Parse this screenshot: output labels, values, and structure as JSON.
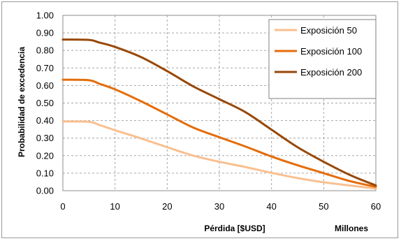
{
  "chart_data": {
    "type": "line",
    "title": "",
    "xlabel": "Pérdida [$USD]",
    "xunit_label": "Millones",
    "ylabel": "Probabilidad de excedencia",
    "xlim": [
      0,
      60
    ],
    "ylim": [
      0,
      1
    ],
    "xticks": [
      "0",
      "10",
      "20",
      "30",
      "40",
      "50",
      "60"
    ],
    "yticks": [
      "0.00",
      "0.10",
      "0.20",
      "0.30",
      "0.40",
      "0.50",
      "0.60",
      "0.70",
      "0.80",
      "0.90",
      "1.00"
    ],
    "grid": true,
    "legend_position": "top-right",
    "series": [
      {
        "name": "Exposición 50",
        "color": "#f9bf8f",
        "points": [
          [
            0,
            0.395
          ],
          [
            5,
            0.393
          ],
          [
            7,
            0.375
          ],
          [
            10,
            0.345
          ],
          [
            15,
            0.298
          ],
          [
            20,
            0.248
          ],
          [
            25,
            0.2
          ],
          [
            30,
            0.165
          ],
          [
            35,
            0.135
          ],
          [
            40,
            0.102
          ],
          [
            45,
            0.072
          ],
          [
            50,
            0.048
          ],
          [
            55,
            0.03
          ],
          [
            60,
            0.012
          ]
        ]
      },
      {
        "name": "Exposición 100",
        "color": "#e46c0a",
        "points": [
          [
            0,
            0.633
          ],
          [
            5,
            0.63
          ],
          [
            7,
            0.61
          ],
          [
            10,
            0.578
          ],
          [
            15,
            0.51
          ],
          [
            20,
            0.435
          ],
          [
            25,
            0.36
          ],
          [
            30,
            0.305
          ],
          [
            35,
            0.252
          ],
          [
            40,
            0.195
          ],
          [
            45,
            0.145
          ],
          [
            50,
            0.1
          ],
          [
            55,
            0.055
          ],
          [
            60,
            0.022
          ]
        ]
      },
      {
        "name": "Exposición 200",
        "color": "#984807",
        "points": [
          [
            0,
            0.862
          ],
          [
            5,
            0.86
          ],
          [
            7,
            0.845
          ],
          [
            10,
            0.82
          ],
          [
            15,
            0.762
          ],
          [
            20,
            0.682
          ],
          [
            25,
            0.595
          ],
          [
            30,
            0.522
          ],
          [
            35,
            0.448
          ],
          [
            40,
            0.348
          ],
          [
            45,
            0.248
          ],
          [
            50,
            0.165
          ],
          [
            55,
            0.09
          ],
          [
            60,
            0.03
          ]
        ]
      }
    ]
  }
}
